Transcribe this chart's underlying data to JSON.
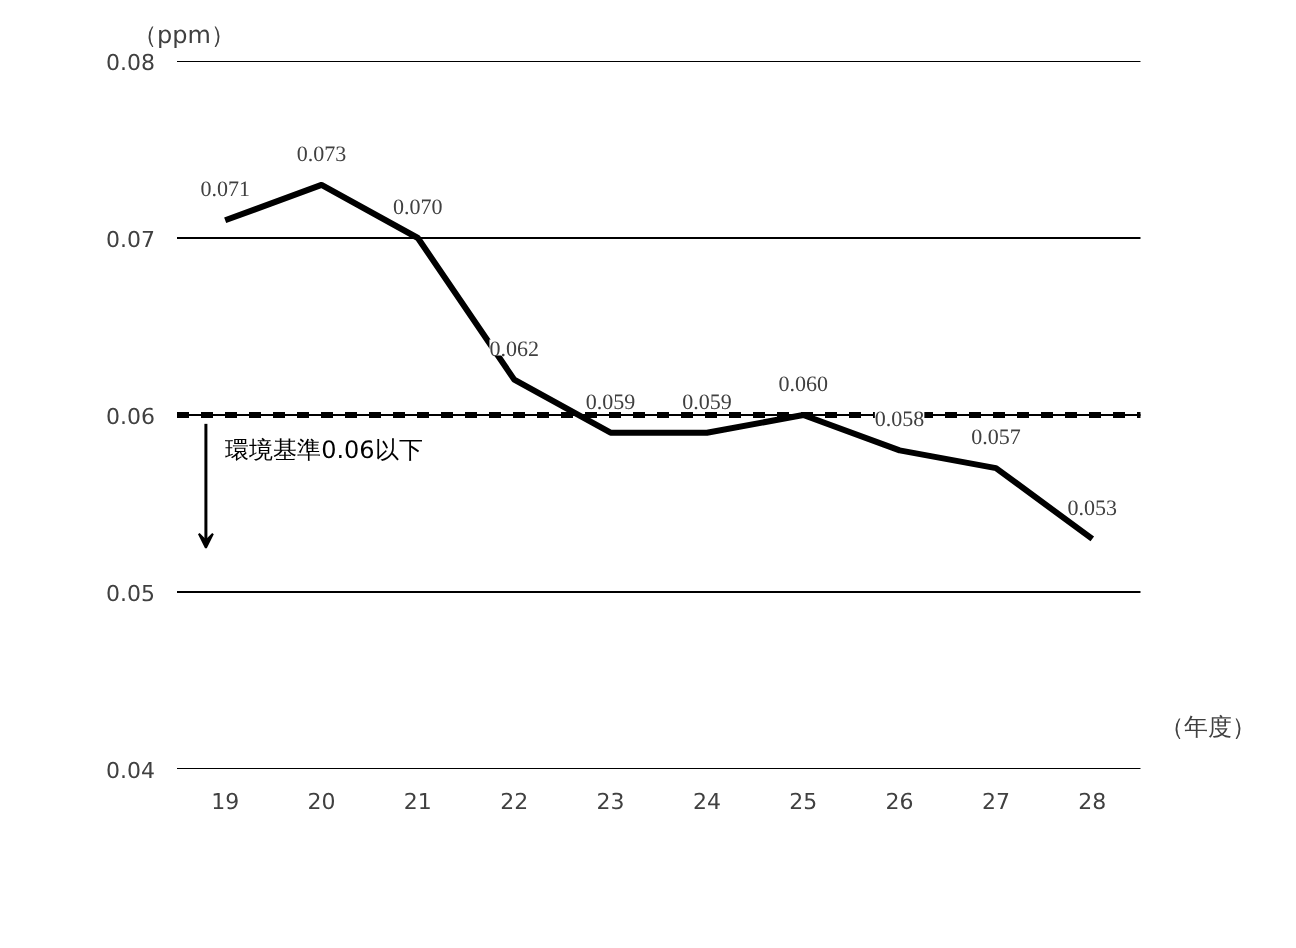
{
  "chart_data": {
    "type": "line",
    "xlabel": "（年度）",
    "ylabel": "（ppm）",
    "categories": [
      "19",
      "20",
      "21",
      "22",
      "23",
      "24",
      "25",
      "26",
      "27",
      "28"
    ],
    "series": [
      {
        "color": "#000000",
        "values": [
          0.071,
          0.073,
          0.07,
          0.062,
          0.059,
          0.059,
          0.06,
          0.058,
          0.057,
          0.053
        ],
        "value_labels": [
          "0.071",
          "0.073",
          "0.070",
          "0.062",
          "0.059",
          "0.059",
          "0.060",
          "0.058",
          "0.057",
          "0.053"
        ]
      }
    ],
    "ylim": [
      0.04,
      0.08
    ],
    "yticks": [
      {
        "value": 0.04,
        "label": "0.04"
      },
      {
        "value": 0.05,
        "label": "0.05"
      },
      {
        "value": 0.06,
        "label": "0.06"
      },
      {
        "value": 0.07,
        "label": "0.07"
      },
      {
        "value": 0.08,
        "label": "0.08"
      }
    ],
    "grid": "y",
    "marker": "none",
    "line_style": "solid",
    "ref_lines": [
      {
        "axis": "y",
        "value": 0.06,
        "label": "環境基準0.06以下",
        "color": "#000000",
        "line_style": "dashed"
      }
    ]
  }
}
